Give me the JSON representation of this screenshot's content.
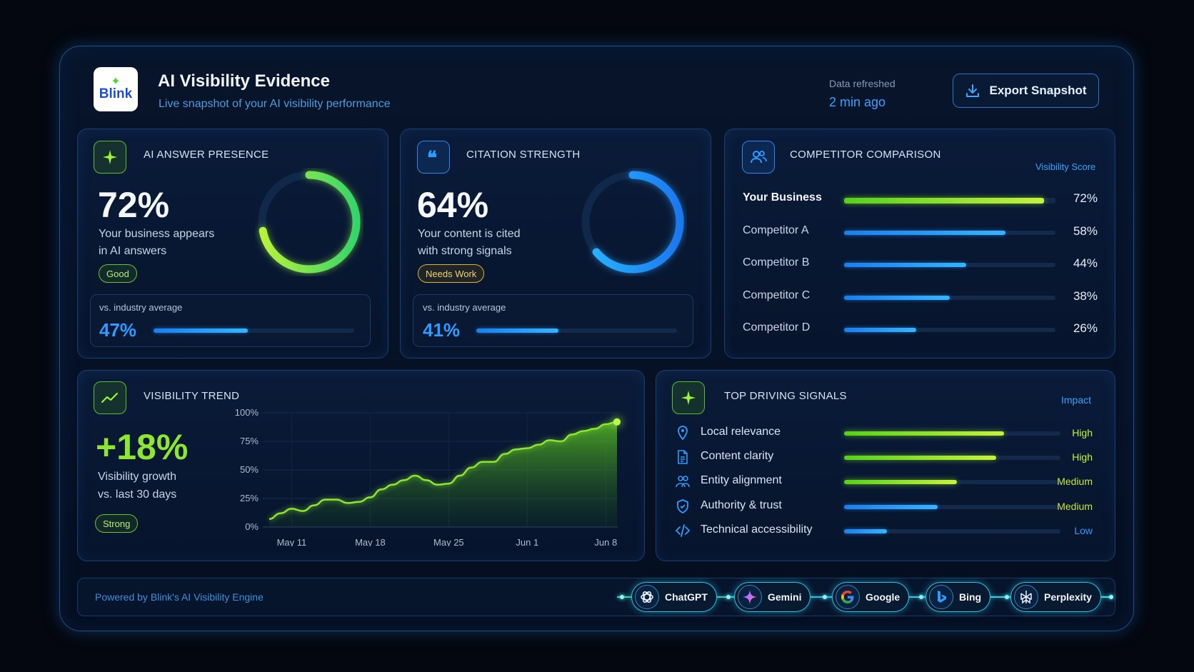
{
  "header": {
    "logo_text": "Blink",
    "title": "AI Visibility Evidence",
    "subtitle": "Live snapshot of your AI visibility performance",
    "refresh_label": "Data refreshed",
    "refresh_value": "2 min ago",
    "export_label": "Export Snapshot"
  },
  "presence": {
    "title": "AI ANSWER PRESENCE",
    "value": "72%",
    "desc_line1": "Your business appears",
    "desc_line2": "in AI answers",
    "badge": "Good",
    "donut_fraction": 0.72,
    "compare_label": "vs. industry average",
    "compare_value": "47%",
    "compare_fraction": 0.47
  },
  "citation": {
    "title": "CITATION STRENGTH",
    "value": "64%",
    "desc_line1": "Your content is cited",
    "desc_line2": "with strong signals",
    "badge": "Needs Work",
    "donut_fraction": 0.64,
    "compare_label": "vs. industry average",
    "compare_value": "41%",
    "compare_fraction": 0.41
  },
  "competitors": {
    "title": "COMPETITOR COMPARISON",
    "score_label": "Visibility Score",
    "rows": [
      {
        "name": "Your Business",
        "value": "72%",
        "fraction": 0.72,
        "highlight": true
      },
      {
        "name": "Competitor A",
        "value": "58%",
        "fraction": 0.58,
        "highlight": false
      },
      {
        "name": "Competitor B",
        "value": "44%",
        "fraction": 0.44,
        "highlight": false
      },
      {
        "name": "Competitor C",
        "value": "38%",
        "fraction": 0.38,
        "highlight": false
      },
      {
        "name": "Competitor D",
        "value": "26%",
        "fraction": 0.26,
        "highlight": false
      }
    ]
  },
  "trend": {
    "title": "VISIBILITY TREND",
    "value": "+18%",
    "desc_line1": "Visibility growth",
    "desc_line2": "vs. last 30 days",
    "badge": "Strong"
  },
  "chart_data": {
    "type": "area",
    "title": "",
    "xlabel": "",
    "ylabel": "",
    "ylim": [
      0,
      100
    ],
    "y_ticks": [
      "100%",
      "75%",
      "50%",
      "25%",
      "0%"
    ],
    "x_ticks": [
      "May 11",
      "May 18",
      "May 25",
      "Jun 1",
      "Jun 8"
    ],
    "x": [
      "May 9",
      "May 10",
      "May 11",
      "May 12",
      "May 13",
      "May 14",
      "May 15",
      "May 16",
      "May 17",
      "May 18",
      "May 19",
      "May 20",
      "May 21",
      "May 22",
      "May 23",
      "May 24",
      "May 25",
      "May 26",
      "May 27",
      "May 28",
      "May 29",
      "May 30",
      "May 31",
      "Jun 1",
      "Jun 2",
      "Jun 3",
      "Jun 4",
      "Jun 5",
      "Jun 6",
      "Jun 7",
      "Jun 8",
      "Jun 9"
    ],
    "values": [
      7,
      12,
      16,
      14,
      19,
      24,
      24,
      21,
      22,
      26,
      33,
      37,
      41,
      45,
      41,
      37,
      38,
      45,
      52,
      57,
      57,
      64,
      68,
      69,
      72,
      76,
      75,
      81,
      84,
      86,
      90,
      92
    ],
    "grid": true
  },
  "signals": {
    "title": "TOP DRIVING SIGNALS",
    "impact_label": "Impact",
    "rows": [
      {
        "name": "Local relevance",
        "impact": "High",
        "fraction": 0.82,
        "color": "green",
        "icon": "location-pin-icon"
      },
      {
        "name": "Content clarity",
        "impact": "High",
        "fraction": 0.78,
        "color": "green",
        "icon": "document-icon"
      },
      {
        "name": "Entity alignment",
        "impact": "Medium",
        "fraction": 0.58,
        "color": "green",
        "icon": "people-icon"
      },
      {
        "name": "Authority & trust",
        "impact": "Medium",
        "fraction": 0.48,
        "color": "blue",
        "icon": "shield-icon"
      },
      {
        "name": "Technical accessibility",
        "impact": "Low",
        "fraction": 0.22,
        "color": "blue",
        "icon": "code-icon"
      }
    ]
  },
  "footer": {
    "powered": "Powered by Blink's AI Visibility Engine",
    "engines": [
      "ChatGPT",
      "Gemini",
      "Google",
      "Bing",
      "Perplexity"
    ]
  },
  "colors": {
    "accent_green": "#8ee62f",
    "accent_blue": "#2e9cff",
    "yellow_badge": "#e0b42a",
    "medium_impact": "#c8e63a"
  }
}
